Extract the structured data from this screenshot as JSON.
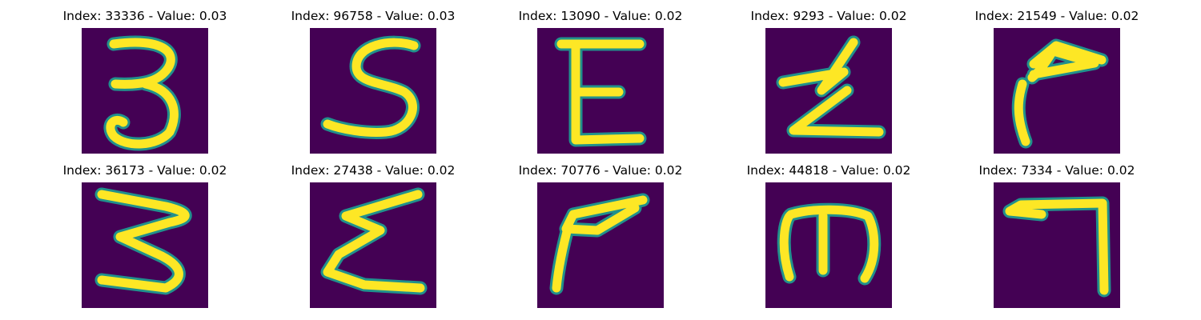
{
  "figure": {
    "background_color": "#440154",
    "stroke_color": "#fde725",
    "edge_color": "#21918c",
    "panels": [
      {
        "title": "Index: 33336 - Value: 0.03",
        "glyph": "digit-3"
      },
      {
        "title": "Index: 96758 - Value: 0.03",
        "glyph": "letter-s"
      },
      {
        "title": "Index: 13090 - Value: 0.02",
        "glyph": "letter-e"
      },
      {
        "title": "Index: 9293 - Value: 0.02",
        "glyph": "zigzag"
      },
      {
        "title": "Index: 21549 - Value: 0.02",
        "glyph": "hook"
      },
      {
        "title": "Index: 36173 - Value: 0.02",
        "glyph": "squiggle-3"
      },
      {
        "title": "Index: 27438 - Value: 0.02",
        "glyph": "sigma"
      },
      {
        "title": "Index: 70776 - Value: 0.02",
        "glyph": "flag"
      },
      {
        "title": "Index: 44818 - Value: 0.02",
        "glyph": "rotated-e"
      },
      {
        "title": "Index: 7334 - Value: 0.02",
        "glyph": "seven"
      }
    ]
  }
}
